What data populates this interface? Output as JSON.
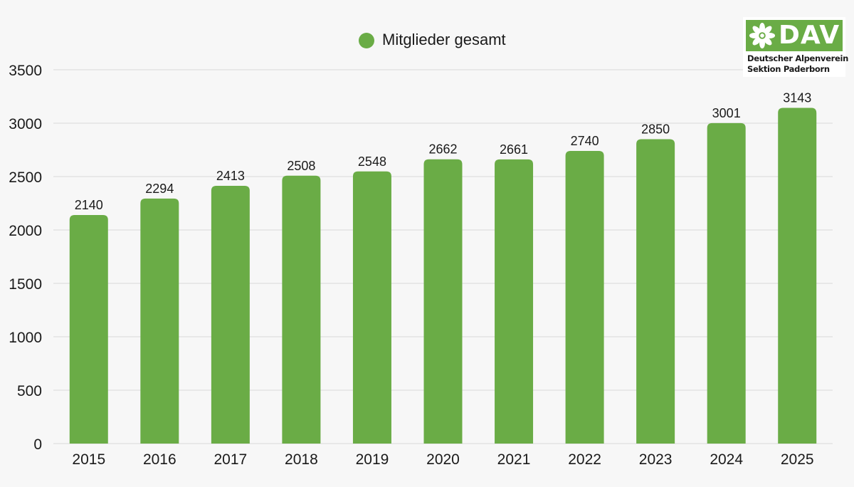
{
  "chart_data": {
    "type": "bar",
    "categories": [
      "2015",
      "2016",
      "2017",
      "2018",
      "2019",
      "2020",
      "2021",
      "2022",
      "2023",
      "2024",
      "2025"
    ],
    "series": [
      {
        "name": "Mitglieder gesamt",
        "values": [
          2140,
          2294,
          2413,
          2508,
          2548,
          2662,
          2661,
          2740,
          2850,
          3001,
          3143
        ]
      }
    ],
    "yticks": [
      "0",
      "500",
      "1000",
      "1500",
      "2000",
      "2500",
      "3000",
      "3500"
    ],
    "ylim": [
      0,
      3500
    ],
    "grid": true,
    "legend_position": "top-center",
    "colors": {
      "bar": "#6aac46",
      "background": "#f7f7f7"
    }
  },
  "logo": {
    "mark": "DAV",
    "line1": "Deutscher Alpenverein",
    "line2": "Sektion Paderborn",
    "icon": "edelweiss-icon"
  }
}
